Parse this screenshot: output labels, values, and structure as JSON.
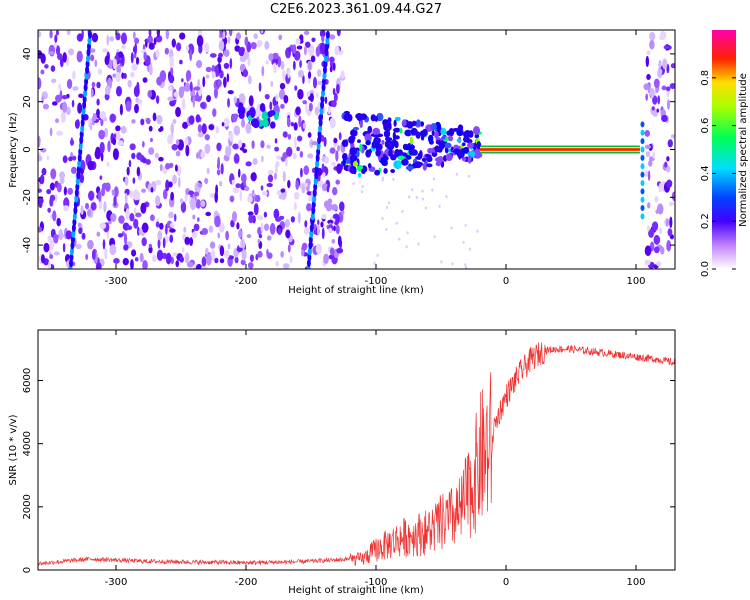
{
  "title": "C2E6.2023.361.09.44.G27",
  "chart_data": [
    {
      "type": "heatmap",
      "xlabel": "Height of straight line (km)",
      "ylabel": "Frequency (Hz)",
      "xlim": [
        -360,
        130
      ],
      "ylim": [
        -50,
        50
      ],
      "x_ticks": [
        -300,
        -200,
        -100,
        0,
        100
      ],
      "y_ticks": [
        -40,
        -20,
        0,
        20,
        40
      ],
      "colorbar": {
        "label": "Normalized spectral amplitude",
        "range": [
          0,
          1
        ],
        "ticks": [
          "0.0",
          "0.2",
          "0.4",
          "0.6",
          "0.8"
        ],
        "colors": [
          "#ffffff",
          "#8800ff",
          "#0000ff",
          "#00ffff",
          "#00ff00",
          "#ffff00",
          "#ff0000",
          "#ff00aa"
        ]
      },
      "features": [
        {
          "name": "noise region",
          "x_range": [
            -360,
            -125
          ],
          "y_range": [
            -50,
            50
          ],
          "amplitude": 0.2
        },
        {
          "name": "diagonal streak",
          "x_start": -335,
          "x_end": -320,
          "y_start": -50,
          "y_end": 48
        },
        {
          "name": "diagonal streak",
          "x_start": -152,
          "x_end": -137,
          "y_start": -50,
          "y_end": 48
        },
        {
          "name": "blob",
          "x_range": [
            -205,
            -175
          ],
          "y_range": [
            10,
            18
          ],
          "amplitude": 0.4
        },
        {
          "name": "transition cluster",
          "x_range": [
            -125,
            -20
          ],
          "y_range": [
            -10,
            15
          ],
          "amplitude": 0.5
        },
        {
          "name": "carrier line",
          "x_range": [
            -20,
            103
          ],
          "y": 0,
          "amplitude": 0.9
        },
        {
          "name": "edge noise",
          "x_range": [
            108,
            130
          ],
          "y_range": [
            -50,
            50
          ],
          "amplitude": 0.2
        }
      ]
    },
    {
      "type": "line",
      "xlabel": "Height of straight line (km)",
      "ylabel": "SNR (10 * v/v)",
      "xlim": [
        -360,
        130
      ],
      "ylim": [
        0,
        7600
      ],
      "x_ticks": [
        -300,
        -200,
        -100,
        0,
        100
      ],
      "y_ticks": [
        0,
        2000,
        4000,
        6000
      ],
      "color": "#ee3333",
      "series": [
        {
          "x": [
            -360,
            -320,
            -280,
            -240,
            -200,
            -160,
            -130,
            -110,
            -100,
            -90,
            -80,
            -70,
            -60,
            -50,
            -40,
            -35,
            -30,
            -25,
            -20,
            -15,
            -10,
            -5,
            0,
            10,
            20,
            30,
            40,
            50,
            60,
            70,
            80,
            90,
            100,
            110,
            120,
            130
          ],
          "y": [
            200,
            350,
            280,
            250,
            230,
            260,
            320,
            380,
            700,
            900,
            1100,
            1200,
            1300,
            1600,
            1800,
            2000,
            2500,
            3000,
            3800,
            4000,
            4400,
            5000,
            5500,
            6200,
            6700,
            6950,
            7000,
            7000,
            6950,
            6900,
            6850,
            6800,
            6750,
            6700,
            6650,
            6550
          ]
        }
      ]
    }
  ]
}
